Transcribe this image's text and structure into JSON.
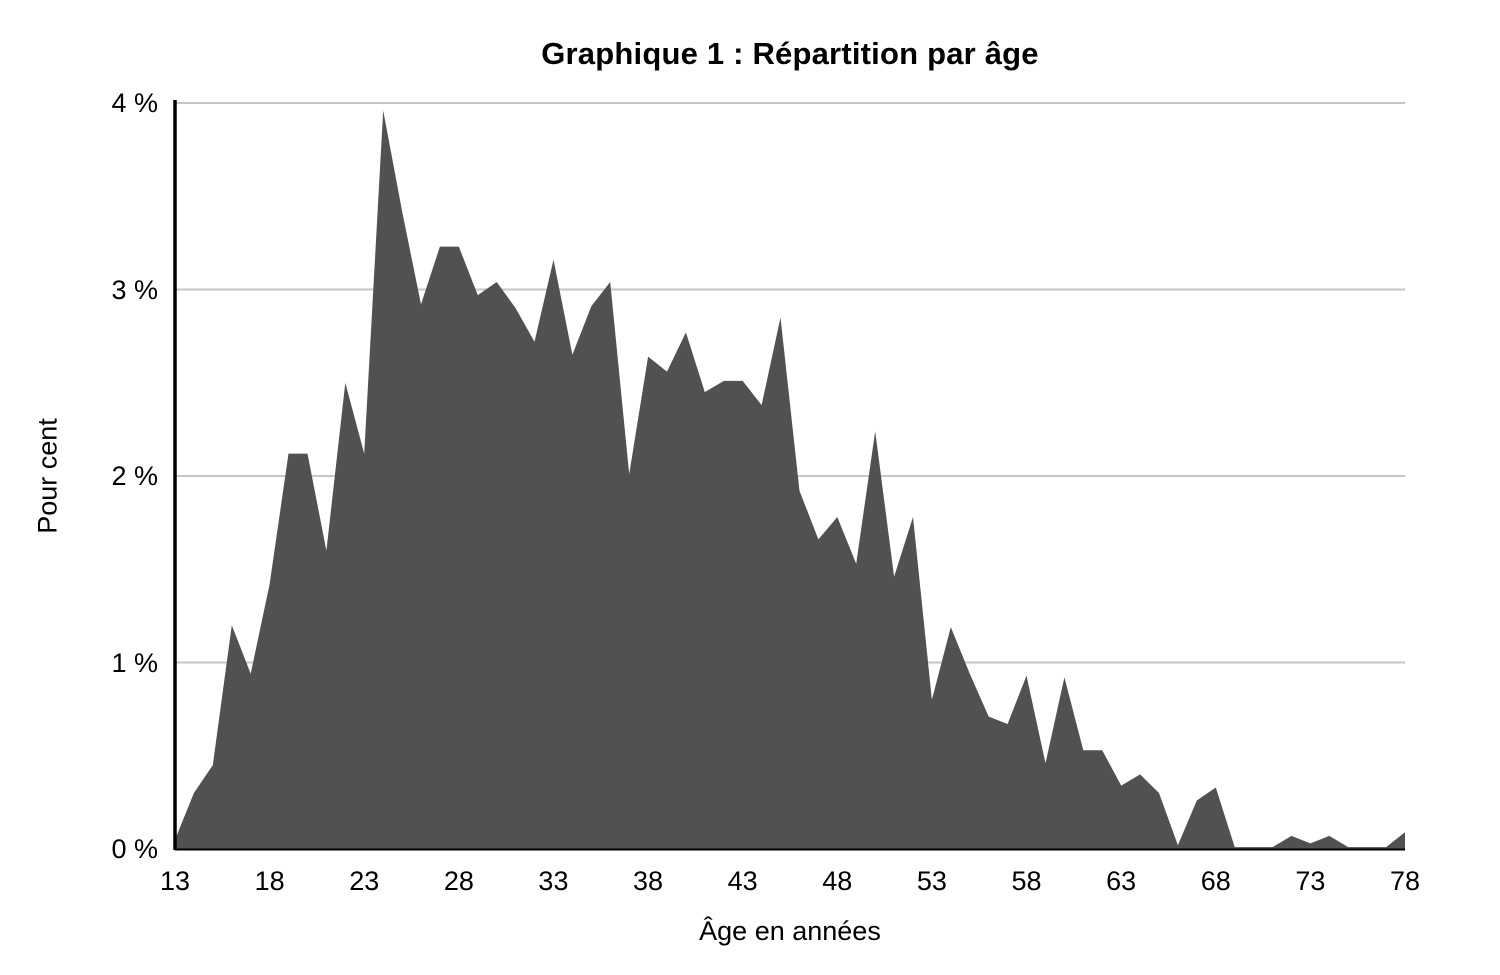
{
  "chart_data": {
    "type": "area",
    "title": "Graphique 1 : Répartition par âge",
    "xlabel": "Âge en années",
    "ylabel": "Pour cent",
    "xlim": [
      13,
      78
    ],
    "ylim": [
      0,
      4
    ],
    "x_ticks": [
      13,
      18,
      23,
      28,
      33,
      38,
      43,
      48,
      53,
      58,
      63,
      68,
      73,
      78
    ],
    "y_ticks": [
      0,
      1,
      2,
      3,
      4
    ],
    "y_tick_labels": [
      "0 %",
      "1 %",
      "2 %",
      "3 %",
      "4 %"
    ],
    "grid": "horizontal gridlines at 1%, 2%, 3%, 4%",
    "legend": "none",
    "series": [
      {
        "name": "Répartition par âge",
        "x": [
          13,
          14,
          15,
          16,
          17,
          18,
          19,
          20,
          21,
          22,
          23,
          24,
          25,
          26,
          27,
          28,
          29,
          30,
          31,
          32,
          33,
          34,
          35,
          36,
          37,
          38,
          39,
          40,
          41,
          42,
          43,
          44,
          45,
          46,
          47,
          48,
          49,
          50,
          51,
          52,
          53,
          54,
          55,
          56,
          57,
          58,
          59,
          60,
          61,
          62,
          63,
          64,
          65,
          66,
          67,
          68,
          69,
          70,
          71,
          72,
          73,
          74,
          75,
          76,
          77,
          78
        ],
        "values": [
          0.05,
          0.3,
          0.45,
          1.2,
          0.94,
          1.42,
          2.12,
          2.12,
          1.6,
          2.5,
          2.12,
          3.96,
          3.42,
          2.92,
          3.23,
          3.23,
          2.97,
          3.04,
          2.9,
          2.72,
          3.16,
          2.65,
          2.91,
          3.04,
          2.01,
          2.64,
          2.56,
          2.77,
          2.45,
          2.51,
          2.51,
          2.38,
          2.85,
          1.92,
          1.66,
          1.78,
          1.53,
          2.24,
          1.46,
          1.78,
          0.8,
          1.19,
          0.94,
          0.71,
          0.67,
          0.93,
          0.46,
          0.92,
          0.53,
          0.53,
          0.34,
          0.4,
          0.3,
          0.02,
          0.26,
          0.33,
          0.01,
          0.01,
          0.01,
          0.07,
          0.03,
          0.07,
          0.01,
          0.01,
          0.01,
          0.09
        ]
      }
    ]
  },
  "colors": {
    "area_fill": "#515151",
    "gridline": "#c6c6c6",
    "axis": "#000000",
    "text": "#000000",
    "background": "#ffffff"
  }
}
